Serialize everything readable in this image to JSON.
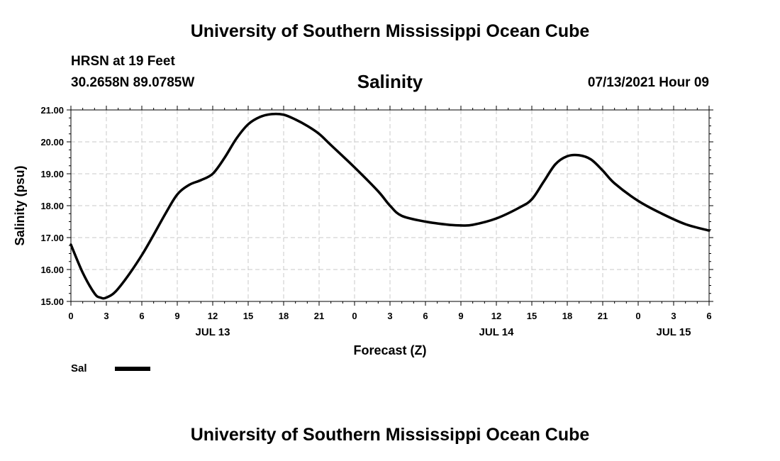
{
  "header": {
    "title": "University of Southern Mississippi Ocean Cube",
    "station": "HRSN at 19 Feet",
    "coordinates": "30.2658N  89.0785W",
    "parameter": "Salinity",
    "timestamp": "07/13/2021 Hour 09"
  },
  "footer": {
    "title": "University of Southern Mississippi Ocean Cube"
  },
  "chart_data": {
    "type": "line",
    "title": "Salinity",
    "xlabel": "Forecast (Z)",
    "ylabel": "Salinity (psu)",
    "ylim": [
      15.0,
      21.0
    ],
    "xlim_hours": [
      0,
      54
    ],
    "x_tick_labels": [
      "0",
      "3",
      "6",
      "9",
      "12",
      "15",
      "18",
      "21",
      "0",
      "3",
      "6",
      "9",
      "12",
      "15",
      "18",
      "21",
      "0",
      "3",
      "6"
    ],
    "y_tick_labels": [
      "15.00",
      "16.00",
      "17.00",
      "18.00",
      "19.00",
      "20.00",
      "21.00"
    ],
    "date_labels": [
      {
        "label": "JUL 13",
        "hour": 12
      },
      {
        "label": "JUL 14",
        "hour": 36
      },
      {
        "label": "JUL 15",
        "hour": 51
      }
    ],
    "grid": true,
    "series": [
      {
        "name": "Sal",
        "color": "#000000",
        "x": [
          0,
          1,
          2,
          2.5,
          3,
          4,
          6,
          8,
          9,
          10,
          11,
          12,
          13,
          14,
          15,
          16,
          17,
          18,
          19,
          20,
          21,
          22,
          24,
          26,
          27,
          28,
          30,
          32,
          33,
          34,
          36,
          38,
          39,
          40,
          41,
          42,
          43,
          44,
          45,
          46,
          48,
          50,
          52,
          54
        ],
        "values": [
          16.78,
          15.9,
          15.25,
          15.12,
          15.12,
          15.4,
          16.45,
          17.75,
          18.35,
          18.65,
          18.8,
          19.0,
          19.5,
          20.1,
          20.55,
          20.78,
          20.87,
          20.85,
          20.7,
          20.5,
          20.25,
          19.9,
          19.2,
          18.45,
          18.0,
          17.68,
          17.5,
          17.4,
          17.38,
          17.4,
          17.6,
          17.95,
          18.2,
          18.75,
          19.3,
          19.55,
          19.58,
          19.45,
          19.1,
          18.7,
          18.15,
          17.75,
          17.42,
          17.22
        ]
      }
    ],
    "legend": {
      "label": "Sal",
      "placement": "bottom-left"
    }
  }
}
